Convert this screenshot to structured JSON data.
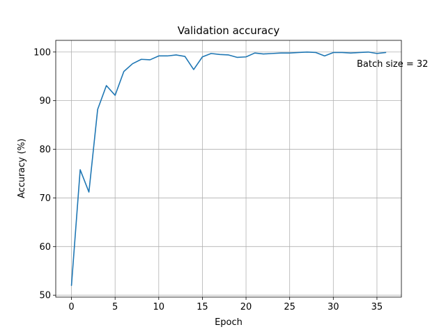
{
  "chart_data": {
    "type": "line",
    "title": "Validation accuracy",
    "xlabel": "Epoch",
    "ylabel": "Accuracy (%)",
    "xlim": [
      -1.8,
      37.8
    ],
    "ylim": [
      49.6,
      102.4
    ],
    "xticks": [
      0,
      5,
      10,
      15,
      20,
      25,
      30,
      35
    ],
    "yticks": [
      50,
      60,
      70,
      80,
      90,
      100
    ],
    "grid": true,
    "annotation": "Batch size = 32",
    "series": [
      {
        "color": "#1f77b4",
        "x": [
          0,
          1,
          2,
          3,
          4,
          5,
          6,
          7,
          8,
          9,
          10,
          11,
          12,
          13,
          14,
          15,
          16,
          17,
          18,
          19,
          20,
          21,
          22,
          23,
          24,
          25,
          26,
          27,
          28,
          29,
          30,
          31,
          32,
          33,
          34,
          35,
          36
        ],
        "y": [
          52.0,
          75.8,
          71.2,
          88.2,
          93.1,
          91.1,
          96.0,
          97.6,
          98.5,
          98.4,
          99.2,
          99.2,
          99.4,
          99.1,
          96.4,
          99.0,
          99.7,
          99.5,
          99.4,
          98.9,
          99.0,
          99.8,
          99.6,
          99.7,
          99.8,
          99.8,
          99.9,
          100.0,
          99.9,
          99.2,
          99.9,
          99.9,
          99.8,
          99.9,
          100.0,
          99.7,
          99.9
        ]
      }
    ]
  }
}
